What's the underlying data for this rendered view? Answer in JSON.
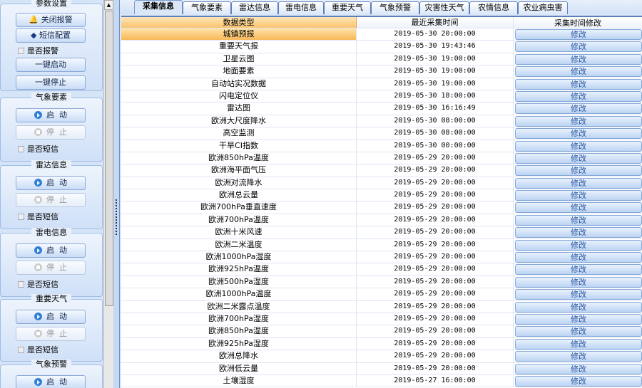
{
  "sidebar": {
    "params": {
      "title": "参数设置",
      "close_alarm": "关闭报警",
      "sms_config": "短信配置",
      "alarm_check": "是否报警",
      "start_all": "一键启动",
      "stop_all": "一键停止"
    },
    "groups": [
      {
        "title": "气象要素",
        "start": "启  动",
        "stop": "停  止",
        "sms": "是否短信"
      },
      {
        "title": "雷达信息",
        "start": "启  动",
        "stop": "停  止",
        "sms": "是否短信"
      },
      {
        "title": "雷电信息",
        "start": "启  动",
        "stop": "停  止",
        "sms": "是否短信"
      },
      {
        "title": "重要天气",
        "start": "启  动",
        "stop": "停  止",
        "sms": "是否短信"
      },
      {
        "title": "气象预警",
        "start": "启  动"
      }
    ]
  },
  "tabs": [
    "采集信息",
    "气象要素",
    "雷达信息",
    "雷电信息",
    "重要天气",
    "气象预警",
    "灾害性天气",
    "农情信息",
    "农业病虫害"
  ],
  "active_tab": "采集信息",
  "table": {
    "headers": [
      "数据类型",
      "最近采集时间",
      "采集时间修改"
    ],
    "edit_label": "修改",
    "rows": [
      [
        "城镇预报",
        "2019-05-30 20:00:00"
      ],
      [
        "重要天气报",
        "2019-05-30 19:43:46"
      ],
      [
        "卫星云图",
        "2019-05-30 19:00:00"
      ],
      [
        "地面要素",
        "2019-05-30 19:00:00"
      ],
      [
        "自动站实况数据",
        "2019-05-30 19:00:00"
      ],
      [
        "闪电定位仪",
        "2019-05-30 18:00:00"
      ],
      [
        "雷达图",
        "2019-05-30 16:16:49"
      ],
      [
        "欧洲大尺度降水",
        "2019-05-30 08:00:00"
      ],
      [
        "高空监测",
        "2019-05-30 08:00:00"
      ],
      [
        "干旱CI指数",
        "2019-05-30 00:00:00"
      ],
      [
        "欧洲850hPa温度",
        "2019-05-29 20:00:00"
      ],
      [
        "欧洲海平面气压",
        "2019-05-29 20:00:00"
      ],
      [
        "欧洲对流降水",
        "2019-05-29 20:00:00"
      ],
      [
        "欧洲总云量",
        "2019-05-29 20:00:00"
      ],
      [
        "欧洲700hPa垂直速度",
        "2019-05-29 20:00:00"
      ],
      [
        "欧洲700hPa温度",
        "2019-05-29 20:00:00"
      ],
      [
        "欧洲十米风速",
        "2019-05-29 20:00:00"
      ],
      [
        "欧洲二米温度",
        "2019-05-29 20:00:00"
      ],
      [
        "欧洲1000hPa湿度",
        "2019-05-29 20:00:00"
      ],
      [
        "欧洲925hPa温度",
        "2019-05-29 20:00:00"
      ],
      [
        "欧洲500hPa湿度",
        "2019-05-29 20:00:00"
      ],
      [
        "欧洲1000hPa温度",
        "2019-05-29 20:00:00"
      ],
      [
        "欧洲二米露点温度",
        "2019-05-29 20:00:00"
      ],
      [
        "欧洲700hPa湿度",
        "2019-05-29 20:00:00"
      ],
      [
        "欧洲850hPa湿度",
        "2019-05-29 20:00:00"
      ],
      [
        "欧洲925hPa湿度",
        "2019-05-29 20:00:00"
      ],
      [
        "欧洲总降水",
        "2019-05-29 20:00:00"
      ],
      [
        "欧洲低云量",
        "2019-05-29 20:00:00"
      ],
      [
        "土壤湿度",
        "2019-05-27 16:00:00"
      ]
    ]
  }
}
